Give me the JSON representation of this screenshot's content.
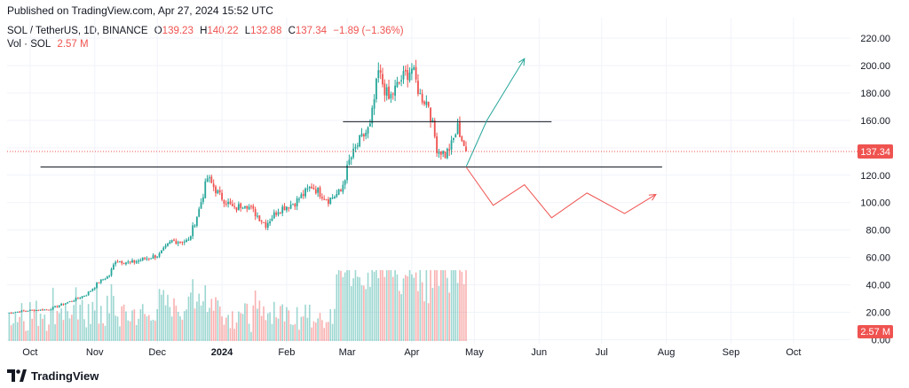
{
  "header": {
    "published": "Published on TradingView.com, Apr 27, 2024 15:52 UTC"
  },
  "legend": {
    "symbol": "SOL / TetherUS, 1D, BINANCE",
    "o_label": "O",
    "o": "139.23",
    "h_label": "H",
    "h": "140.22",
    "l_label": "L",
    "l": "132.88",
    "c_label": "C",
    "c": "137.34",
    "change": "−1.89 (−1.36%)",
    "vol_label": "Vol · SOL",
    "vol_value": "2.57 M"
  },
  "footer": {
    "brand": "TradingView"
  },
  "colors": {
    "up": "#26a69a",
    "down": "#ef5350",
    "projection_up": "#26a69a",
    "projection_down": "#ef5350",
    "level_line": "#131722",
    "price_line": "#ef5350"
  },
  "chart_data": {
    "type": "candlestick",
    "symbol": "SOL / TetherUS",
    "interval": "1D",
    "exchange": "BINANCE",
    "y_axis_ticks": [
      "220.00",
      "200.00",
      "180.00",
      "160.00",
      "140.00",
      "120.00",
      "100.00",
      "80.00",
      "60.00",
      "40.00",
      "20.00",
      "0.00"
    ],
    "ylim": [
      0,
      225
    ],
    "x_axis_ticks": [
      "Oct",
      "Nov",
      "Dec",
      "2024",
      "Feb",
      "Mar",
      "Apr",
      "May",
      "Jun",
      "Jul",
      "Aug",
      "Sep",
      "Oct"
    ],
    "last_price": "137.34",
    "last_volume": "2.57 M",
    "price_keypoints": [
      {
        "date": "2023-09-20",
        "close": 19.5
      },
      {
        "date": "2023-10-01",
        "close": 21.5
      },
      {
        "date": "2023-10-10",
        "close": 22
      },
      {
        "date": "2023-10-22",
        "close": 29
      },
      {
        "date": "2023-10-28",
        "close": 33
      },
      {
        "date": "2023-11-03",
        "close": 42
      },
      {
        "date": "2023-11-08",
        "close": 47
      },
      {
        "date": "2023-11-11",
        "close": 58
      },
      {
        "date": "2023-11-18",
        "close": 56
      },
      {
        "date": "2023-11-25",
        "close": 59
      },
      {
        "date": "2023-12-02",
        "close": 62
      },
      {
        "date": "2023-12-08",
        "close": 72
      },
      {
        "date": "2023-12-16",
        "close": 72
      },
      {
        "date": "2023-12-21",
        "close": 95
      },
      {
        "date": "2023-12-25",
        "close": 118
      },
      {
        "date": "2023-12-31",
        "close": 105
      },
      {
        "date": "2024-01-07",
        "close": 95
      },
      {
        "date": "2024-01-12",
        "close": 100
      },
      {
        "date": "2024-01-22",
        "close": 84
      },
      {
        "date": "2024-01-28",
        "close": 95
      },
      {
        "date": "2024-02-05",
        "close": 100
      },
      {
        "date": "2024-02-13",
        "close": 112
      },
      {
        "date": "2024-02-21",
        "close": 102
      },
      {
        "date": "2024-02-27",
        "close": 108
      },
      {
        "date": "2024-03-02",
        "close": 130
      },
      {
        "date": "2024-03-07",
        "close": 145
      },
      {
        "date": "2024-03-12",
        "close": 155
      },
      {
        "date": "2024-03-16",
        "close": 195
      },
      {
        "date": "2024-03-21",
        "close": 175
      },
      {
        "date": "2024-03-27",
        "close": 190
      },
      {
        "date": "2024-04-01",
        "close": 198
      },
      {
        "date": "2024-04-05",
        "close": 178
      },
      {
        "date": "2024-04-09",
        "close": 172
      },
      {
        "date": "2024-04-13",
        "close": 140
      },
      {
        "date": "2024-04-17",
        "close": 135
      },
      {
        "date": "2024-04-20",
        "close": 142
      },
      {
        "date": "2024-04-23",
        "close": 155
      },
      {
        "date": "2024-04-26",
        "close": 142
      },
      {
        "date": "2024-04-27",
        "close": 137.34
      }
    ],
    "horizontal_levels": [
      {
        "value": 159,
        "from": "2024-02-28",
        "to": "2024-06-07"
      },
      {
        "value": 126,
        "from": "2023-10-06",
        "to": "2024-07-30"
      }
    ],
    "projections": [
      {
        "name": "bullish",
        "color": "#26a69a",
        "points": [
          {
            "date": "2024-04-27",
            "value": 126
          },
          {
            "date": "2024-05-07",
            "value": 160
          },
          {
            "date": "2024-05-25",
            "value": 205
          }
        ]
      },
      {
        "name": "bearish",
        "color": "#ef5350",
        "points": [
          {
            "date": "2024-04-27",
            "value": 126
          },
          {
            "date": "2024-05-10",
            "value": 98
          },
          {
            "date": "2024-05-25",
            "value": 113
          },
          {
            "date": "2024-06-07",
            "value": 89
          },
          {
            "date": "2024-06-24",
            "value": 107
          },
          {
            "date": "2024-07-12",
            "value": 92
          },
          {
            "date": "2024-07-27",
            "value": 106
          }
        ]
      }
    ],
    "grid": true
  }
}
